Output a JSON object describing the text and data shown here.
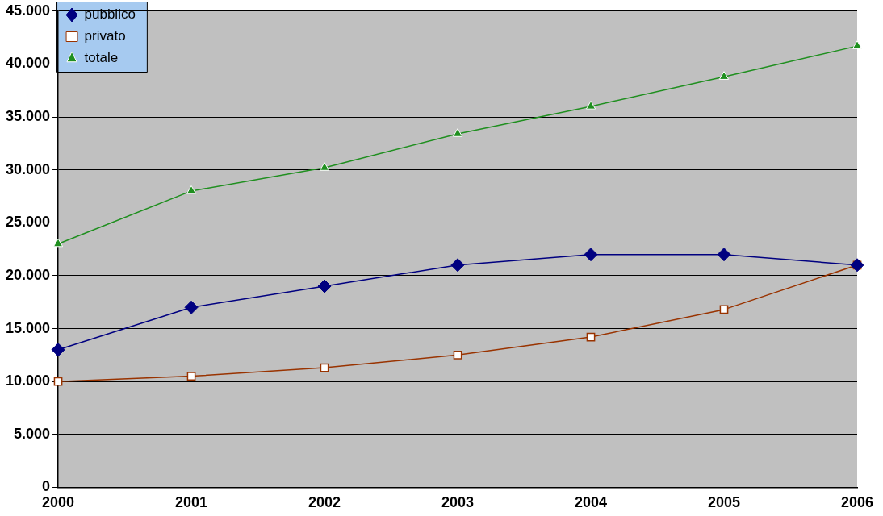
{
  "chart_data": {
    "type": "line",
    "categories": [
      "2000",
      "2001",
      "2002",
      "2003",
      "2004",
      "2005",
      "2006"
    ],
    "series": [
      {
        "name": "pubblico",
        "color": "#000080",
        "marker": "diamond",
        "values": [
          13000,
          17000,
          19000,
          21000,
          22000,
          22000,
          21000
        ]
      },
      {
        "name": "privato",
        "color": "#993300",
        "marker": "square",
        "values": [
          10000,
          10500,
          11300,
          12500,
          14200,
          16800,
          21000
        ]
      },
      {
        "name": "totale",
        "color": "#1f8f1f",
        "marker": "triangle",
        "values": [
          23000,
          28000,
          30200,
          33400,
          36000,
          38800,
          41700
        ]
      }
    ],
    "ylim": [
      0,
      45000
    ],
    "yticks": [
      {
        "value": 0,
        "label": "0"
      },
      {
        "value": 5000,
        "label": "5.000"
      },
      {
        "value": 10000,
        "label": "10.000"
      },
      {
        "value": 15000,
        "label": "15.000"
      },
      {
        "value": 20000,
        "label": "20.000"
      },
      {
        "value": 25000,
        "label": "25.000"
      },
      {
        "value": 30000,
        "label": "30.000"
      },
      {
        "value": 35000,
        "label": "35.000"
      },
      {
        "value": 40000,
        "label": "40.000"
      },
      {
        "value": 45000,
        "label": "45.000"
      }
    ],
    "grid": "y",
    "legend": "top left"
  }
}
